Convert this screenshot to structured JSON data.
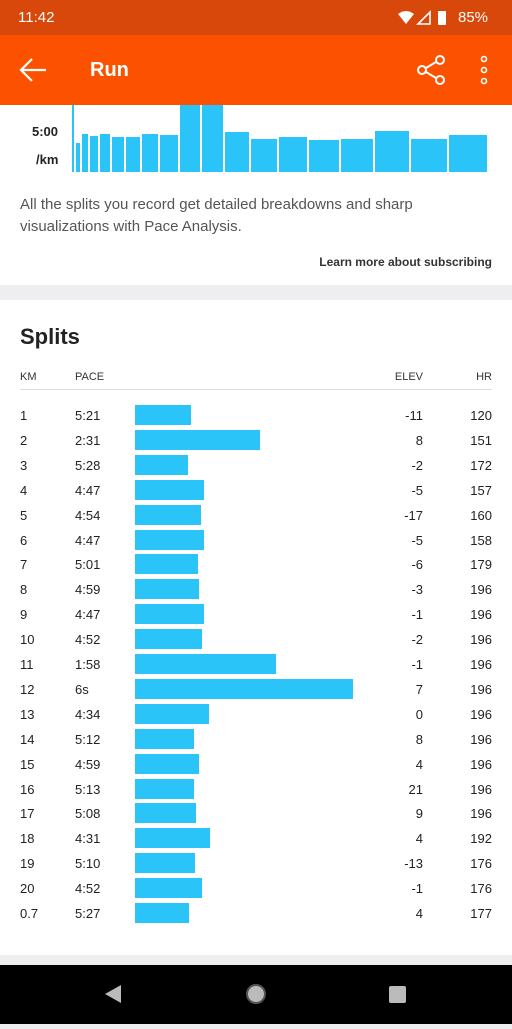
{
  "status_bar": {
    "time": "11:42",
    "battery": "85%"
  },
  "app_bar": {
    "title": "Run"
  },
  "pace_chart": {
    "y_label": "5:00",
    "y_unit": "/km"
  },
  "upsell": {
    "text": "All the splits you record get detailed breakdowns and sharp visualizations with Pace Analysis.",
    "link": "Learn more about subscribing"
  },
  "splits": {
    "title": "Splits",
    "columns": [
      "KM",
      "PACE",
      "ELEV",
      "HR"
    ],
    "rows": [
      [
        1,
        "5:21",
        -11,
        120
      ],
      [
        2,
        "2:31",
        8,
        151
      ],
      [
        3,
        "5:28",
        -2,
        172
      ],
      [
        4,
        "4:47",
        -5,
        157
      ],
      [
        5,
        "4:54",
        -17,
        160
      ],
      [
        6,
        "4:47",
        -5,
        158
      ],
      [
        7,
        "5:01",
        -6,
        179
      ],
      [
        8,
        "4:59",
        -3,
        196
      ],
      [
        9,
        "4:47",
        -1,
        196
      ],
      [
        10,
        "4:52",
        -2,
        196
      ],
      [
        11,
        "1:58",
        -1,
        196
      ],
      [
        12,
        "6s",
        7,
        196
      ],
      [
        13,
        "4:34",
        0,
        196
      ],
      [
        14,
        "5:12",
        8,
        196
      ],
      [
        15,
        "4:59",
        4,
        196
      ],
      [
        16,
        "5:13",
        21,
        196
      ],
      [
        17,
        "5:08",
        9,
        196
      ],
      [
        18,
        "4:31",
        4,
        192
      ],
      [
        19,
        "5:10",
        -13,
        176
      ],
      [
        20,
        "4:52",
        -1,
        176
      ],
      [
        0.7,
        "5:27",
        4,
        177
      ]
    ]
  }
}
